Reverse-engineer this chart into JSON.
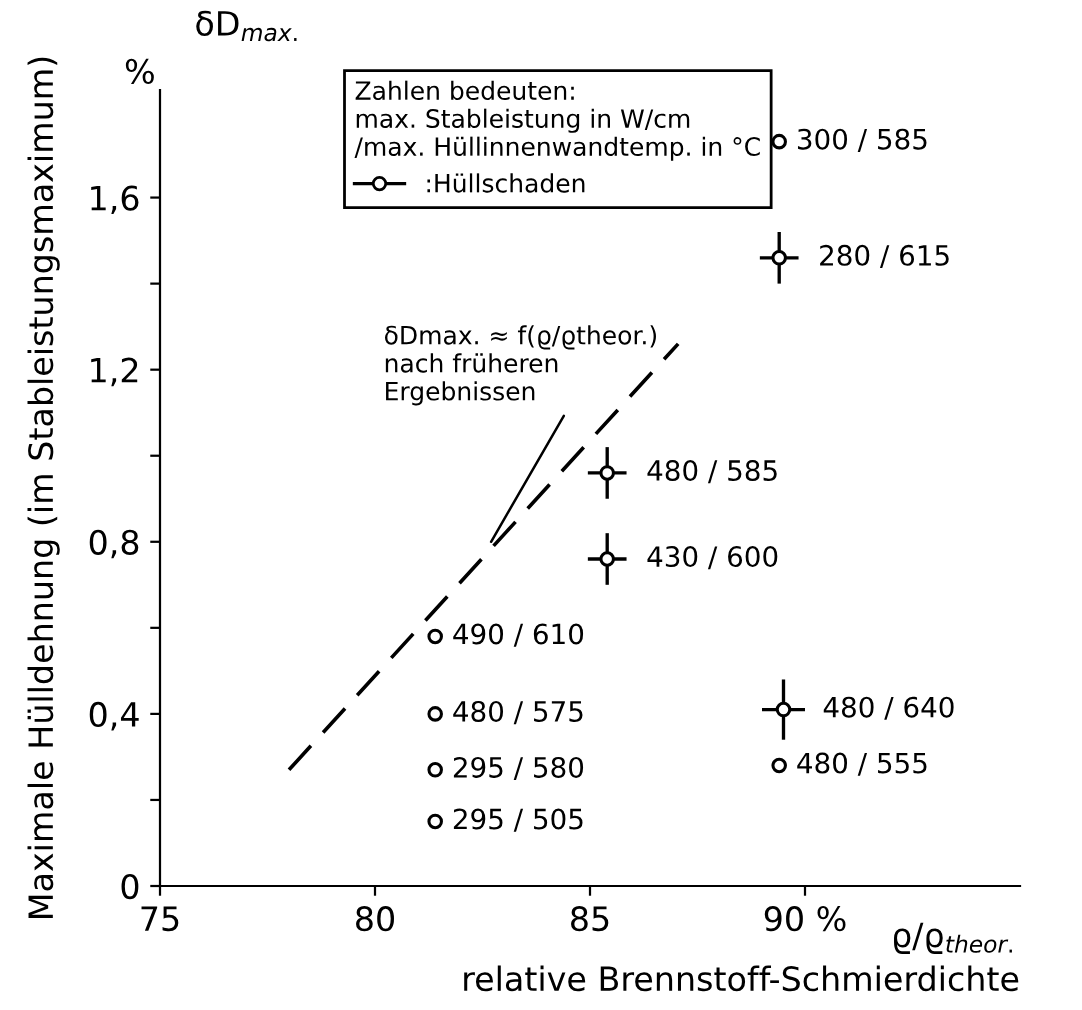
{
  "chart_data": {
    "type": "scatter",
    "xlabel": "relative Brennstoff-Schmierdichte",
    "ylabel": "Maximale Hülldehnung (im Stableistungsmaximum)",
    "legend_title": "Zahlen bedeuten:\nmax. Stableistung in W/cm\n/max. Hüllinnenwandtemp. in °C",
    "xlim": [
      75,
      95
    ],
    "ylim": [
      0,
      1.85
    ],
    "xticks": [
      75,
      80,
      85,
      {
        "value": 90,
        "label": "90 %"
      }
    ],
    "yticks": [
      0,
      {
        "value": 0.2,
        "label": null
      },
      {
        "value": 0.4,
        "label": "0,4"
      },
      {
        "value": 0.6,
        "label": null
      },
      {
        "value": 0.8,
        "label": "0,8"
      },
      {
        "value": 1.0,
        "label": null
      },
      {
        "value": 1.2,
        "label": "1,2"
      },
      {
        "value": 1.4,
        "label": null
      },
      {
        "value": 1.6,
        "label": "1,6"
      }
    ],
    "grid": false,
    "legend": "top left",
    "marker": "circle",
    "series": [
      {
        "color": "#000000",
        "x": [
          89.4,
          81.4,
          81.4,
          81.4,
          81.4,
          89.4
        ],
        "values": [
          1.73,
          0.58,
          0.4,
          0.27,
          0.15,
          0.28
        ],
        "value_labels": [
          "300 / 585",
          "490 / 610",
          "480 / 575",
          "295 / 580",
          "295 / 505",
          "480 / 555"
        ]
      },
      {
        "name": ":Hüllschaden",
        "color": "#000000",
        "x": [
          89.4,
          85.4,
          85.4,
          89.5
        ],
        "values": [
          1.46,
          0.96,
          0.76,
          0.41
        ],
        "value_labels": [
          "280 / 615",
          "480 / 585",
          "430 / 600",
          "480 / 640"
        ],
        "errors": [
          0.06,
          0.06,
          0.06,
          0.07
        ],
        "xerrors": [
          0.45,
          0.45,
          0.45,
          0.5
        ]
      },
      {
        "type": "line",
        "line_style": "dashed",
        "marker": "none",
        "color": "#000000",
        "x": [
          78.0,
          87.05
        ],
        "values": [
          0.27,
          1.26
        ]
      }
    ],
    "annotations": [
      "δD$_{max.}$",
      "%",
      "ϱ/ϱ$_{theor.}$",
      {
        "text": "δDmax. ≈ f(ϱ/ϱtheor.)\nnach früheren\nErgebnissen",
        "x": 82.7,
        "y": 0.8
      }
    ]
  }
}
